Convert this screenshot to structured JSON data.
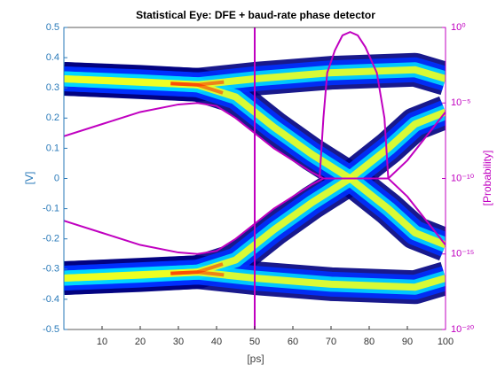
{
  "chart_data": {
    "type": "eye",
    "title": "Statistical Eye: DFE + baud-rate phase detector",
    "xlabel": "[ps]",
    "ylabel": "[V]",
    "y2label": "[Probability]",
    "xlim": [
      0,
      100
    ],
    "xticks": [
      10,
      20,
      30,
      40,
      50,
      60,
      70,
      80,
      90,
      100
    ],
    "ylim": [
      -0.5,
      0.5
    ],
    "yticks": [
      -0.5,
      -0.4,
      -0.3,
      -0.2,
      -0.1,
      0,
      0.1,
      0.2,
      0.3,
      0.4,
      0.5
    ],
    "y2lim": [
      1e-20,
      1
    ],
    "y2scale": "log",
    "y2ticks": [
      {
        "value": 1e-20,
        "label": "10⁻²⁰"
      },
      {
        "value": 1e-15,
        "label": "10⁻¹⁵"
      },
      {
        "value": 1e-10,
        "label": "10⁻¹⁰"
      },
      {
        "value": 1e-05,
        "label": "10⁻⁵"
      },
      {
        "value": 1,
        "label": "10⁰"
      }
    ],
    "axis_color": "#2a7ab9",
    "contour_color": "#c000c0",
    "density_colors": [
      "#00007f",
      "#0030ff",
      "#00d8ff",
      "#f0ff20",
      "#ff2000"
    ],
    "traces": [
      {
        "x": [
          0,
          20,
          35,
          50,
          70,
          92,
          100
        ],
        "y": [
          0.33,
          0.32,
          0.31,
          0.33,
          0.35,
          0.36,
          0.33
        ]
      },
      {
        "x": [
          0,
          35,
          45,
          55,
          65,
          75,
          85,
          92,
          100
        ],
        "y": [
          0.33,
          0.31,
          0.27,
          0.17,
          0.08,
          0,
          -0.1,
          -0.18,
          -0.22
        ]
      },
      {
        "x": [
          0,
          20,
          35,
          50,
          70,
          92,
          100
        ],
        "y": [
          -0.33,
          -0.32,
          -0.31,
          -0.33,
          -0.35,
          -0.36,
          -0.33
        ]
      },
      {
        "x": [
          0,
          35,
          45,
          55,
          65,
          75,
          85,
          92,
          100
        ],
        "y": [
          -0.33,
          -0.31,
          -0.27,
          -0.17,
          -0.08,
          0,
          0.1,
          0.18,
          0.22
        ]
      }
    ],
    "contours": [
      {
        "x": [
          0,
          10,
          20,
          30,
          35,
          40,
          45,
          50,
          55,
          60,
          65,
          68,
          85,
          90,
          95,
          100
        ],
        "y": [
          0.14,
          0.18,
          0.22,
          0.245,
          0.25,
          0.24,
          0.2,
          0.15,
          0.1,
          0.06,
          0.02,
          0,
          0,
          -0.06,
          -0.14,
          -0.22
        ]
      },
      {
        "x": [
          0,
          10,
          20,
          30,
          35,
          40,
          45,
          50,
          55,
          60,
          65,
          68,
          85,
          90,
          95,
          100
        ],
        "y": [
          -0.14,
          -0.18,
          -0.22,
          -0.245,
          -0.25,
          -0.24,
          -0.2,
          -0.15,
          -0.1,
          -0.06,
          -0.02,
          0,
          0,
          0.06,
          0.14,
          0.22
        ]
      }
    ],
    "sample_time": 50,
    "bathtub": {
      "axis": "y2",
      "x": [
        67,
        68,
        69,
        71,
        73,
        75,
        77,
        79,
        82,
        84,
        85
      ],
      "values": [
        1e-10,
        1e-06,
        0.001,
        0.03,
        0.3,
        0.5,
        0.3,
        0.05,
        0.001,
        1e-06,
        1e-10
      ]
    }
  }
}
